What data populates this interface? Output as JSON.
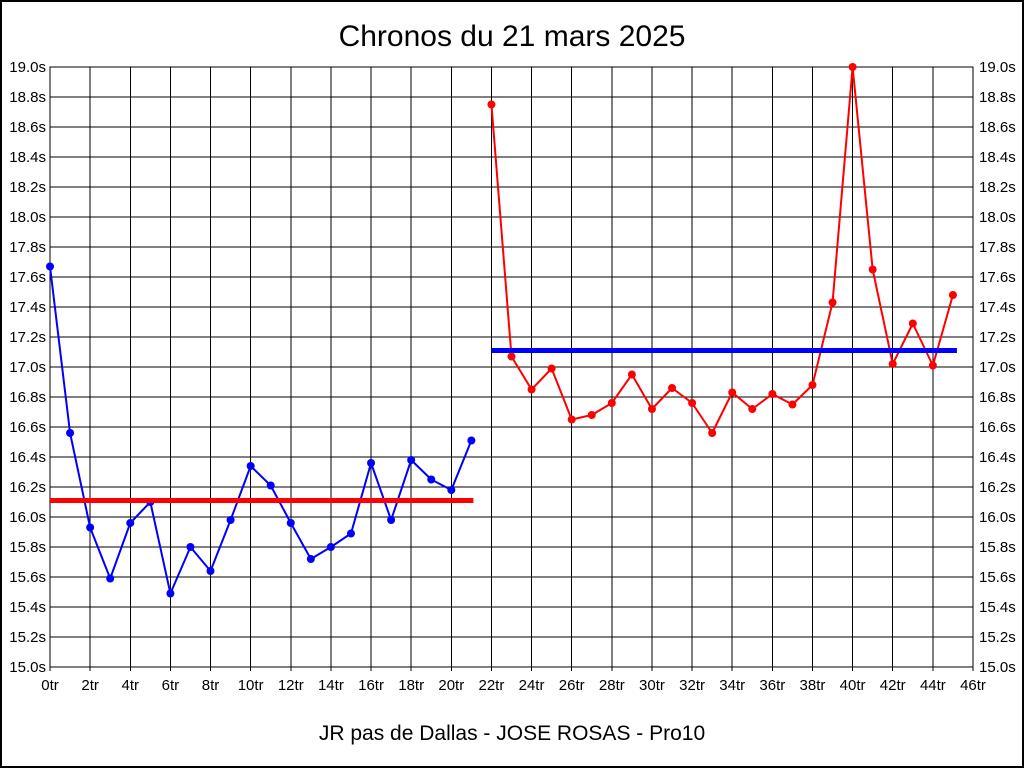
{
  "chart_data": {
    "type": "line",
    "title": "Chronos du 21 mars 2025",
    "subtitle": "JR pas de Dallas - JOSE ROSAS - Pro10",
    "xlabel": "",
    "ylabel": "",
    "x_unit": "tr",
    "y_unit": "s",
    "xlim": [
      0,
      46
    ],
    "ylim": [
      15.0,
      19.0
    ],
    "x_tick_step": 2,
    "y_tick_step": 0.2,
    "grid": true,
    "legend": "none",
    "x_ticks": [
      "0tr",
      "2tr",
      "4tr",
      "6tr",
      "8tr",
      "10tr",
      "12tr",
      "14tr",
      "16tr",
      "18tr",
      "20tr",
      "22tr",
      "24tr",
      "26tr",
      "28tr",
      "30tr",
      "32tr",
      "34tr",
      "36tr",
      "38tr",
      "40tr",
      "42tr",
      "44tr",
      "46tr"
    ],
    "y_ticks": [
      "19.0s",
      "18.8s",
      "18.6s",
      "18.4s",
      "18.2s",
      "18.0s",
      "17.8s",
      "17.6s",
      "17.4s",
      "17.2s",
      "17.0s",
      "16.8s",
      "16.6s",
      "16.4s",
      "16.2s",
      "16.0s",
      "15.8s",
      "15.6s",
      "15.4s",
      "15.2s",
      "15.0s"
    ],
    "colors": {
      "grid": "#000000",
      "text": "#000000",
      "background": "#ffffff",
      "series_1": "#0000ff",
      "series_2": "#ff0000"
    },
    "series": [
      {
        "name": "laps-0-21",
        "color": "#0000ff",
        "start_x": 0,
        "values": [
          17.67,
          16.56,
          15.93,
          15.59,
          15.96,
          16.1,
          15.49,
          15.8,
          15.64,
          15.98,
          16.34,
          16.21,
          15.96,
          15.72,
          15.8,
          15.89,
          16.36,
          15.98,
          16.38,
          16.25,
          16.18,
          16.51
        ]
      },
      {
        "name": "laps-22-45",
        "color": "#ff0000",
        "start_x": 22,
        "values": [
          18.75,
          17.07,
          16.85,
          16.99,
          16.65,
          16.68,
          16.76,
          16.95,
          16.72,
          16.86,
          16.76,
          16.56,
          16.83,
          16.72,
          16.82,
          16.75,
          16.88,
          17.43,
          19.0,
          17.65,
          17.02,
          17.29,
          17.01,
          17.48
        ]
      }
    ],
    "reference_lines": [
      {
        "name": "average-first-stint",
        "color": "#ff0000",
        "value": 16.11,
        "x_from": 0,
        "x_to": 21.1
      },
      {
        "name": "average-second-stint",
        "color": "#0000ff",
        "value": 17.11,
        "x_from": 22,
        "x_to": 45.2
      }
    ]
  }
}
